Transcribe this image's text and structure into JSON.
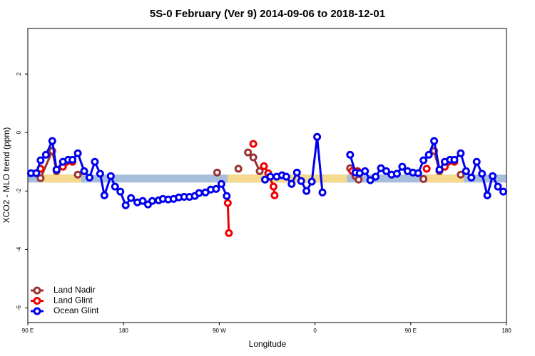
{
  "chart_data": {
    "type": "line",
    "title": "5S-0 February (Ver 9)   2014-09-06 to 2018-12-01",
    "x_label": "Longitude",
    "y_label": "XCO2 - MLO trend (ppm)",
    "xlim": [
      90,
      540
    ],
    "ylim": [
      -6.5,
      3.56
    ],
    "xticks": [
      {
        "value": 90,
        "label": "90 E"
      },
      {
        "value": 180,
        "label": "180"
      },
      {
        "value": 270,
        "label": "90 W"
      },
      {
        "value": 360,
        "label": "0"
      },
      {
        "value": 450,
        "label": "90 E"
      },
      {
        "value": 540,
        "label": "180"
      }
    ],
    "yticks": [
      2,
      0,
      -2,
      -4,
      -6
    ],
    "legend": "bottom-left",
    "background_band": {
      "range": [
        -1.44,
        -1.71
      ],
      "color": "#a6bddb",
      "highlight_ranges": [
        [
          101,
          140
        ],
        [
          278,
          390
        ],
        [
          465,
          500
        ]
      ],
      "highlight_color": "#f5d98c"
    },
    "series": [
      {
        "name": "Land Nadir",
        "color": "#993333",
        "x": [
          102,
          113,
          117,
          null,
          137,
          null,
          268,
          null,
          288,
          null,
          297,
          302,
          308,
          null,
          393,
          398,
          401,
          null,
          462,
          null,
          472,
          477,
          null,
          497
        ],
        "values": [
          -1.56,
          -0.63,
          -1.32,
          null,
          -1.44,
          null,
          -1.37,
          null,
          -1.24,
          null,
          -0.68,
          -0.85,
          -1.32,
          null,
          -1.22,
          -1.49,
          -1.61,
          null,
          -1.59,
          null,
          -0.63,
          -1.32,
          null,
          -1.44
        ]
      },
      {
        "name": "Land Glint",
        "color": "#ee0000",
        "x": [
          102,
          null,
          123,
          132,
          null,
          278,
          279,
          null,
          302,
          null,
          312,
          316,
          321,
          322,
          null,
          395,
          400,
          null,
          465,
          null,
          482,
          491
        ],
        "values": [
          -1.24,
          null,
          -1.17,
          -1.0,
          null,
          -2.41,
          -3.44,
          null,
          -0.39,
          null,
          -1.15,
          -1.39,
          -1.85,
          -2.15,
          null,
          -1.32,
          -1.32,
          null,
          -1.24,
          null,
          -1.17,
          -1.0
        ]
      },
      {
        "name": "Ocean Glint",
        "color": "#0000ee",
        "x": [
          93,
          98,
          102,
          107,
          113,
          117,
          123,
          128,
          132,
          137,
          143,
          148,
          153,
          158,
          162,
          168,
          172,
          177,
          182,
          187,
          193,
          198,
          203,
          207,
          213,
          217,
          222,
          227,
          232,
          237,
          242,
          247,
          251,
          257,
          262,
          267,
          272,
          277,
          null,
          313,
          318,
          324,
          329,
          333,
          338,
          343,
          347,
          352,
          357,
          362,
          367,
          null,
          393,
          398,
          402,
          407,
          412,
          417,
          422,
          427,
          432,
          437,
          442,
          447,
          452,
          457,
          462,
          467,
          472,
          477,
          482,
          487,
          491,
          497,
          502,
          507,
          512,
          517,
          522,
          527,
          532,
          537
        ],
        "values": [
          -1.39,
          -1.39,
          -0.95,
          -0.76,
          -0.29,
          -1.27,
          -1.0,
          -0.93,
          -0.93,
          -0.71,
          -1.32,
          -1.54,
          -1.0,
          -1.41,
          -2.15,
          -1.49,
          -1.85,
          -2.02,
          -2.49,
          -2.24,
          -2.39,
          -2.34,
          -2.46,
          -2.34,
          -2.32,
          -2.27,
          -2.29,
          -2.27,
          -2.22,
          -2.2,
          -2.2,
          -2.17,
          -2.07,
          -2.05,
          -1.95,
          -1.93,
          -1.76,
          -2.17,
          null,
          -1.61,
          -1.51,
          -1.51,
          -1.46,
          -1.51,
          -1.76,
          -1.37,
          -1.66,
          -2.0,
          -1.68,
          -0.15,
          -2.05,
          null,
          -0.76,
          -1.37,
          -1.39,
          -1.32,
          -1.63,
          -1.51,
          -1.22,
          -1.32,
          -1.44,
          -1.41,
          -1.17,
          -1.32,
          -1.37,
          -1.39,
          -0.95,
          -0.76,
          -0.29,
          -1.27,
          -1.0,
          -0.93,
          -0.93,
          -0.71,
          -1.32,
          -1.54,
          -1.0,
          -1.41,
          -2.15,
          -1.49,
          -1.85,
          -2.02
        ]
      }
    ]
  }
}
